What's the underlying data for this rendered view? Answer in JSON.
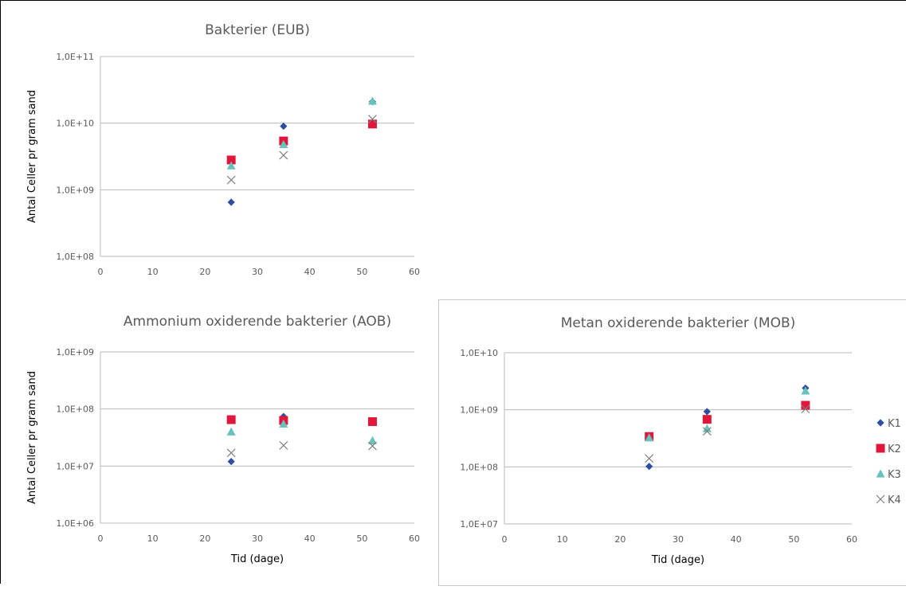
{
  "colors": {
    "K1": "#2f4ea1",
    "K2": "#e0173a",
    "K3": "#67c2bd",
    "K4": "#7f7f7f",
    "grid": "#b9b9b9",
    "axis_text": "#595959",
    "title_text": "#595959"
  },
  "chart_data": [
    {
      "type": "scatter",
      "title": "Bakterier (EUB)",
      "xlabel": "",
      "ylabel": "Antal Celler pr gram sand",
      "xlim": [
        0,
        60
      ],
      "xticks": [
        "0",
        "10",
        "20",
        "30",
        "40",
        "50",
        "60"
      ],
      "ylim": [
        100000000,
        100000000000
      ],
      "yscale": "log",
      "yticks": [
        "1,0E+08",
        "1,0E+09",
        "1,0E+10",
        "1,0E+11"
      ],
      "grid": true,
      "legend": "right",
      "series": [
        {
          "name": "K1",
          "marker": "diamond",
          "x": [
            25,
            35,
            52
          ],
          "y": [
            650000000,
            9000000000,
            21000000000
          ]
        },
        {
          "name": "K2",
          "marker": "square",
          "x": [
            25,
            35,
            52
          ],
          "y": [
            2800000000,
            5400000000,
            9700000000
          ]
        },
        {
          "name": "K3",
          "marker": "triangle",
          "x": [
            25,
            35,
            52
          ],
          "y": [
            2300000000,
            4800000000,
            21500000000
          ]
        },
        {
          "name": "K4",
          "marker": "cross",
          "x": [
            25,
            35,
            52
          ],
          "y": [
            1400000000,
            3300000000,
            11500000000
          ]
        }
      ]
    },
    {
      "type": "scatter",
      "title": "Ammonium oxiderende bakterier (AOB)",
      "xlabel": "Tid (dage)",
      "ylabel": "Antal Celler pr gram sand",
      "xlim": [
        0,
        60
      ],
      "xticks": [
        "0",
        "10",
        "20",
        "30",
        "40",
        "50",
        "60"
      ],
      "ylim": [
        1000000,
        1000000000
      ],
      "yscale": "log",
      "yticks": [
        "1,0E+06",
        "1,0E+07",
        "1,0E+08",
        "1,0E+09"
      ],
      "grid": true,
      "legend": "none",
      "series": [
        {
          "name": "K1",
          "marker": "diamond",
          "x": [
            25,
            35,
            52
          ],
          "y": [
            12000000,
            74000000,
            62000000
          ]
        },
        {
          "name": "K2",
          "marker": "square",
          "x": [
            25,
            35,
            52
          ],
          "y": [
            65000000,
            63000000,
            60000000
          ]
        },
        {
          "name": "K3",
          "marker": "triangle",
          "x": [
            25,
            35,
            52
          ],
          "y": [
            40000000,
            55000000,
            28000000
          ]
        },
        {
          "name": "K4",
          "marker": "cross",
          "x": [
            25,
            35,
            52
          ],
          "y": [
            17000000,
            23000000,
            22500000
          ]
        }
      ]
    },
    {
      "type": "scatter",
      "title": "Metan oxiderende bakterier (MOB)",
      "xlabel": "Tid (dage)",
      "ylabel": "",
      "xlim": [
        0,
        60
      ],
      "xticks": [
        "0",
        "10",
        "20",
        "30",
        "40",
        "50",
        "60"
      ],
      "ylim": [
        10000000,
        10000000000
      ],
      "yscale": "log",
      "yticks": [
        "1,0E+07",
        "1,0E+08",
        "1,0E+09",
        "1,0E+10"
      ],
      "grid": true,
      "legend": "right",
      "series": [
        {
          "name": "K1",
          "marker": "diamond",
          "x": [
            25,
            35,
            52
          ],
          "y": [
            102000000,
            930000000,
            2400000000
          ]
        },
        {
          "name": "K2",
          "marker": "square",
          "x": [
            25,
            35,
            52
          ],
          "y": [
            340000000,
            680000000,
            1200000000
          ]
        },
        {
          "name": "K3",
          "marker": "triangle",
          "x": [
            25,
            35,
            52
          ],
          "y": [
            325000000,
            470000000,
            2150000000
          ]
        },
        {
          "name": "K4",
          "marker": "cross",
          "x": [
            25,
            35,
            52
          ],
          "y": [
            140000000,
            420000000,
            1030000000
          ]
        }
      ]
    }
  ]
}
